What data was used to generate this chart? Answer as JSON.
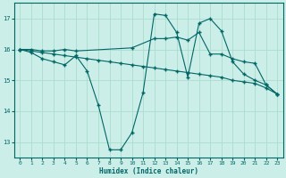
{
  "background_color": "#cceee8",
  "grid_color": "#aaddcc",
  "line_color": "#006666",
  "xlabel": "Humidex (Indice chaleur)",
  "xlim": [
    -0.5,
    23.5
  ],
  "ylim": [
    12.5,
    17.5
  ],
  "yticks": [
    13,
    14,
    15,
    16,
    17
  ],
  "xticks": [
    0,
    1,
    2,
    3,
    4,
    5,
    6,
    7,
    8,
    9,
    10,
    11,
    12,
    13,
    14,
    15,
    16,
    17,
    18,
    19,
    20,
    21,
    22,
    23
  ],
  "series": [
    {
      "x": [
        0,
        1,
        2,
        3,
        4,
        5,
        6,
        7,
        8,
        9,
        10,
        11,
        12,
        13,
        14,
        15,
        16,
        17,
        18,
        19,
        20,
        21,
        22,
        23
      ],
      "y": [
        16.0,
        15.9,
        15.7,
        15.6,
        15.5,
        15.8,
        15.3,
        14.2,
        12.75,
        12.75,
        13.3,
        14.6,
        17.15,
        17.1,
        16.55,
        15.1,
        16.85,
        17.0,
        16.6,
        15.6,
        15.2,
        15.0,
        14.85,
        14.55
      ]
    },
    {
      "x": [
        0,
        1,
        2,
        3,
        4,
        5,
        10,
        12,
        13,
        14,
        15,
        16,
        17,
        18,
        19,
        20,
        21,
        22,
        23
      ],
      "y": [
        16.0,
        16.0,
        15.95,
        15.95,
        16.0,
        15.95,
        16.05,
        16.35,
        16.35,
        16.4,
        16.3,
        16.55,
        15.85,
        15.85,
        15.7,
        15.6,
        15.55,
        14.85,
        14.55
      ]
    },
    {
      "x": [
        0,
        1,
        2,
        3,
        4,
        5,
        6,
        7,
        8,
        9,
        10,
        11,
        12,
        13,
        14,
        15,
        16,
        17,
        18,
        19,
        20,
        21,
        22,
        23
      ],
      "y": [
        16.0,
        15.95,
        15.9,
        15.85,
        15.8,
        15.75,
        15.7,
        15.65,
        15.6,
        15.55,
        15.5,
        15.45,
        15.4,
        15.35,
        15.3,
        15.25,
        15.2,
        15.15,
        15.1,
        15.0,
        14.95,
        14.9,
        14.75,
        14.55
      ]
    }
  ]
}
